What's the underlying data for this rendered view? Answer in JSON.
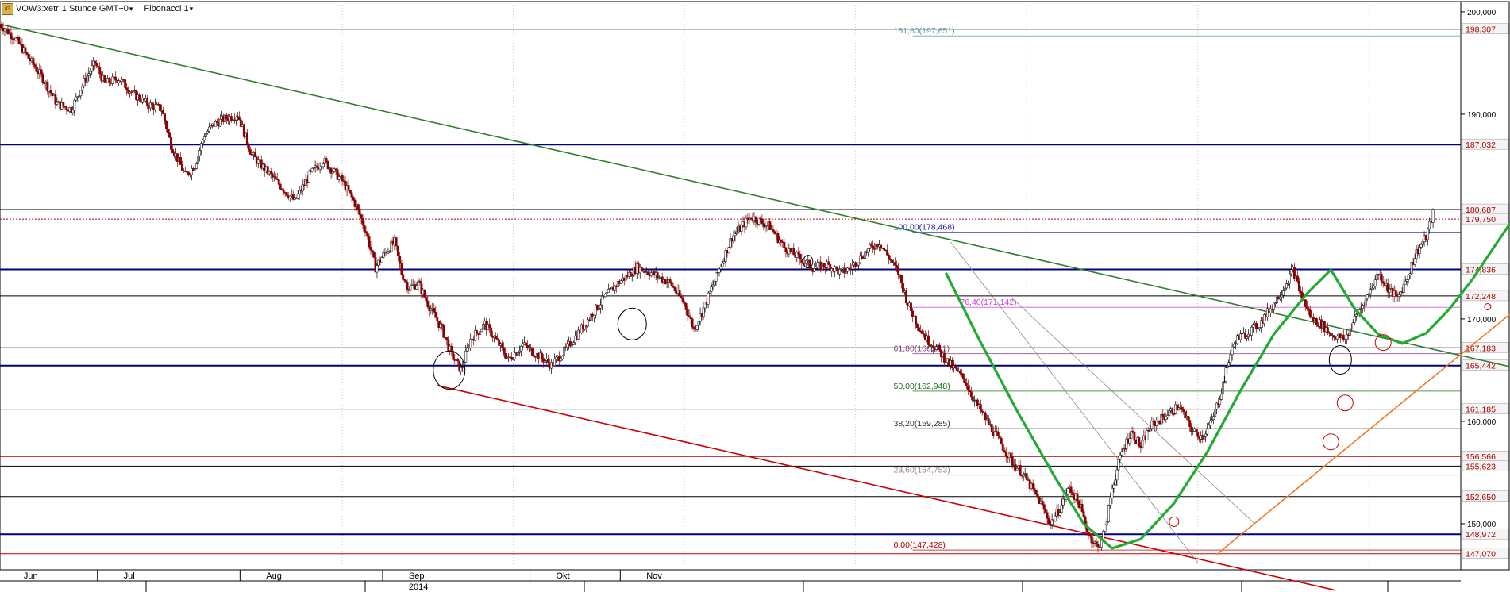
{
  "header": {
    "logo_text": "iG",
    "symbol": "VOW3:xetr",
    "interval": "1 Stunde GMT+0",
    "tool": "Fibonacci 1"
  },
  "chart_data": {
    "type": "candlestick",
    "ylim": [
      145.5,
      201
    ],
    "y_ticks": [
      {
        "value": 150,
        "label": "150,000"
      },
      {
        "value": 160,
        "label": "160,000"
      },
      {
        "value": 170,
        "label": "170,000"
      },
      {
        "value": 190,
        "label": "190,000"
      },
      {
        "value": 200,
        "label": "200,000"
      }
    ],
    "x_months": [
      {
        "label": "Jun",
        "pos": 0.5
      },
      {
        "label": "Jul",
        "pos": 2.6
      },
      {
        "label": "Aug",
        "pos": 5.6
      },
      {
        "label": "Sep",
        "pos": 8.6
      },
      {
        "label": "Okt",
        "pos": 11.7
      },
      {
        "label": "Nov",
        "pos": 13.6
      }
    ],
    "x_year": {
      "label": "2014",
      "pos": 8.6
    },
    "price_line": [
      [
        0,
        198.8
      ],
      [
        0.3,
        197.5
      ],
      [
        0.6,
        195.5
      ],
      [
        0.9,
        193.5
      ],
      [
        1.2,
        191
      ],
      [
        1.5,
        190.5
      ],
      [
        1.8,
        193.5
      ],
      [
        2.0,
        195
      ],
      [
        2.2,
        193
      ],
      [
        2.5,
        193.5
      ],
      [
        2.8,
        192
      ],
      [
        3.1,
        191
      ],
      [
        3.4,
        190.5
      ],
      [
        3.6,
        187
      ],
      [
        3.9,
        184
      ],
      [
        4.1,
        185
      ],
      [
        4.3,
        188
      ],
      [
        4.5,
        189
      ],
      [
        4.7,
        189.5
      ],
      [
        5.0,
        190
      ],
      [
        5.3,
        186
      ],
      [
        5.6,
        184.5
      ],
      [
        5.9,
        183
      ],
      [
        6.2,
        181.5
      ],
      [
        6.5,
        184
      ],
      [
        6.8,
        185.5
      ],
      [
        7.2,
        183.5
      ],
      [
        7.5,
        181
      ],
      [
        7.7,
        178.5
      ],
      [
        7.9,
        175
      ],
      [
        8.1,
        176.5
      ],
      [
        8.3,
        177.5
      ],
      [
        8.45,
        174.5
      ],
      [
        8.6,
        173
      ],
      [
        8.8,
        173.5
      ],
      [
        9.0,
        171.5
      ],
      [
        9.3,
        169
      ],
      [
        9.5,
        166.5
      ],
      [
        9.7,
        165
      ],
      [
        9.9,
        168
      ],
      [
        10.2,
        169.5
      ],
      [
        10.5,
        167.5
      ],
      [
        10.7,
        166
      ],
      [
        11.0,
        167.5
      ],
      [
        11.3,
        166.5
      ],
      [
        11.6,
        165.5
      ],
      [
        11.9,
        167
      ],
      [
        12.3,
        169.5
      ],
      [
        12.7,
        172
      ],
      [
        13.0,
        173.5
      ],
      [
        13.4,
        175
      ],
      [
        13.7,
        174.5
      ],
      [
        14.1,
        173.5
      ],
      [
        14.4,
        171.5
      ],
      [
        14.6,
        169
      ],
      [
        14.8,
        171
      ],
      [
        15.1,
        174.5
      ],
      [
        15.4,
        178
      ],
      [
        15.8,
        180
      ],
      [
        16.2,
        179
      ],
      [
        16.5,
        177
      ],
      [
        16.8,
        176
      ],
      [
        17.1,
        175
      ],
      [
        17.4,
        175.3
      ],
      [
        17.7,
        174.5
      ],
      [
        17.9,
        175
      ],
      [
        18.2,
        176.5
      ],
      [
        18.5,
        177.5
      ],
      [
        18.7,
        176
      ],
      [
        18.9,
        174.5
      ],
      [
        19.1,
        171.5
      ],
      [
        19.3,
        169.5
      ],
      [
        19.5,
        168
      ],
      [
        19.7,
        167.2
      ],
      [
        19.9,
        166
      ],
      [
        20.1,
        165
      ],
      [
        20.3,
        164
      ],
      [
        20.5,
        162
      ],
      [
        20.7,
        160.5
      ],
      [
        20.9,
        159
      ],
      [
        21.1,
        157.5
      ],
      [
        21.3,
        156
      ],
      [
        21.5,
        155
      ],
      [
        21.7,
        153.5
      ],
      [
        21.9,
        152
      ],
      [
        22.1,
        150
      ],
      [
        22.3,
        151.5
      ],
      [
        22.5,
        153.5
      ],
      [
        22.7,
        152
      ],
      [
        22.9,
        149
      ],
      [
        23.1,
        147.6
      ],
      [
        23.25,
        149.5
      ],
      [
        23.4,
        153.5
      ],
      [
        23.6,
        157
      ],
      [
        23.8,
        159
      ],
      [
        24.0,
        157.5
      ],
      [
        24.2,
        159.5
      ],
      [
        24.5,
        160.5
      ],
      [
        24.8,
        161.5
      ],
      [
        25.1,
        159
      ],
      [
        25.3,
        158.5
      ],
      [
        25.5,
        160
      ],
      [
        25.7,
        163
      ],
      [
        25.85,
        166
      ],
      [
        26.0,
        168
      ],
      [
        26.2,
        168.5
      ],
      [
        26.5,
        169.5
      ],
      [
        26.8,
        171.5
      ],
      [
        27.0,
        173
      ],
      [
        27.2,
        174.8
      ],
      [
        27.4,
        172
      ],
      [
        27.6,
        170
      ],
      [
        27.8,
        169.5
      ],
      [
        28.0,
        168.5
      ],
      [
        28.3,
        168
      ],
      [
        28.5,
        170
      ],
      [
        28.8,
        172.5
      ],
      [
        29.0,
        174.5
      ],
      [
        29.2,
        173
      ],
      [
        29.4,
        172
      ],
      [
        29.6,
        174
      ],
      [
        29.8,
        176.5
      ],
      [
        30.0,
        178
      ],
      [
        30.15,
        180.3
      ]
    ],
    "x_max": 30.6,
    "horizontal_levels": [
      {
        "value": 198.307,
        "label": "198,307",
        "color": "#000000",
        "style": "solid",
        "label_color": "#b00000"
      },
      {
        "value": 187.032,
        "label": "187,032",
        "color": "#000080",
        "style": "solid",
        "label_color": "#b00000"
      },
      {
        "value": 180.687,
        "label": "180,687",
        "color": "#000000",
        "style": "solid",
        "label_color": "#b00000"
      },
      {
        "value": 179.75,
        "label": "179,750",
        "color": "#b00000",
        "style": "dotted",
        "label_color": "#b00000"
      },
      {
        "value": 174.836,
        "label": "174,836",
        "color": "#000080",
        "style": "solid",
        "label_color": "#b00000"
      },
      {
        "value": 172.248,
        "label": "172,248",
        "color": "#000000",
        "style": "solid",
        "label_color": "#b00000"
      },
      {
        "value": 167.183,
        "label": "167,183",
        "color": "#000000",
        "style": "solid",
        "label_color": "#b00000"
      },
      {
        "value": 165.442,
        "label": "165,442",
        "color": "#000080",
        "style": "solid",
        "label_color": "#b00000"
      },
      {
        "value": 161.185,
        "label": "161,185",
        "color": "#000000",
        "style": "solid",
        "label_color": "#b00000"
      },
      {
        "value": 156.566,
        "label": "156,566",
        "color": "#b00000",
        "style": "solid",
        "label_color": "#b00000"
      },
      {
        "value": 155.623,
        "label": "155,623",
        "color": "#000000",
        "style": "solid",
        "label_color": "#b00000"
      },
      {
        "value": 152.65,
        "label": "152,650",
        "color": "#000000",
        "style": "solid",
        "label_color": "#b00000"
      },
      {
        "value": 148.972,
        "label": "148,972",
        "color": "#000080",
        "style": "solid",
        "label_color": "#b00000"
      },
      {
        "value": 147.07,
        "label": "147,070",
        "color": "#cc0000",
        "style": "solid",
        "label_color": "#b00000"
      }
    ],
    "fibonacci": [
      {
        "value": 197.651,
        "label": "161,80(197,651)",
        "color": "#5a9aa8"
      },
      {
        "value": 178.468,
        "label": "100,00(178,468)",
        "color": "#2020a0"
      },
      {
        "value": 171.142,
        "label": "76,40(171,142)",
        "color": "#d040d0"
      },
      {
        "value": 166.611,
        "label": "61,80(166,611)",
        "color": "#804080"
      },
      {
        "value": 162.948,
        "label": "50,00(162,948)",
        "color": "#207020"
      },
      {
        "value": 159.285,
        "label": "38,20(159,285)",
        "color": "#303030"
      },
      {
        "value": 154.753,
        "label": "23,60(154,753)",
        "color": "#a08080"
      },
      {
        "value": 147.428,
        "label": "0,00(147,428)",
        "color": "#b00000"
      }
    ],
    "colors": {
      "up": "#000000",
      "down": "#8b0000",
      "green_trend": "#2f7f2f",
      "red_trend": "#cc0000",
      "orange_trend": "#f07820",
      "bowl": "#22aa33",
      "arrow": "#2f8f2f"
    }
  }
}
